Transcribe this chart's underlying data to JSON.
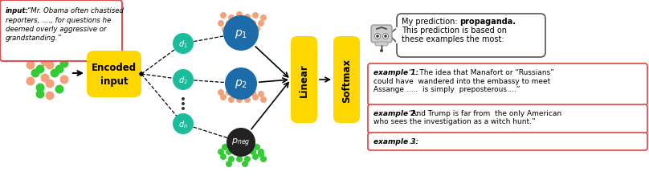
{
  "bg_color": "#ffffff",
  "input_text_bold": "input:",
  "input_text_rest": " “Mr. Obama often chastised\nreporters, ...., for questions he\ndeemed overly aggressive or\ngrandstanding.”",
  "encoded_box_color": "#FFD700",
  "encoded_text": "Encoded\ninput",
  "linear_text": "Linear",
  "softmax_text": "Softmax",
  "p1_color": "#1B6CA8",
  "p2_color": "#1B6CA8",
  "pneg_color": "#222222",
  "d_color": "#1abc9c",
  "dot_green": "#33cc33",
  "dot_salmon": "#f4a07a",
  "prediction_line1_plain": "My prediction: ",
  "prediction_line1_bold": "propaganda.",
  "prediction_line2": "This prediction is based on",
  "prediction_line3": "these examples the most:",
  "example1_bold": "example 1:",
  "example1_rest": " “…The idea that Manafort or “Russians”\ncould have  wandered into the embassy to meet\nAssange .....  is simply  preposterous….”",
  "example2_bold": "example 2:",
  "example2_rest": " “And Trump is far from  the only American\nwho sees the investigation as a witch hunt.”",
  "example3_bold": "example 3:",
  "example3_rest": " …",
  "robot_body_color": "#dddddd",
  "bubble_edge_color": "#555555"
}
